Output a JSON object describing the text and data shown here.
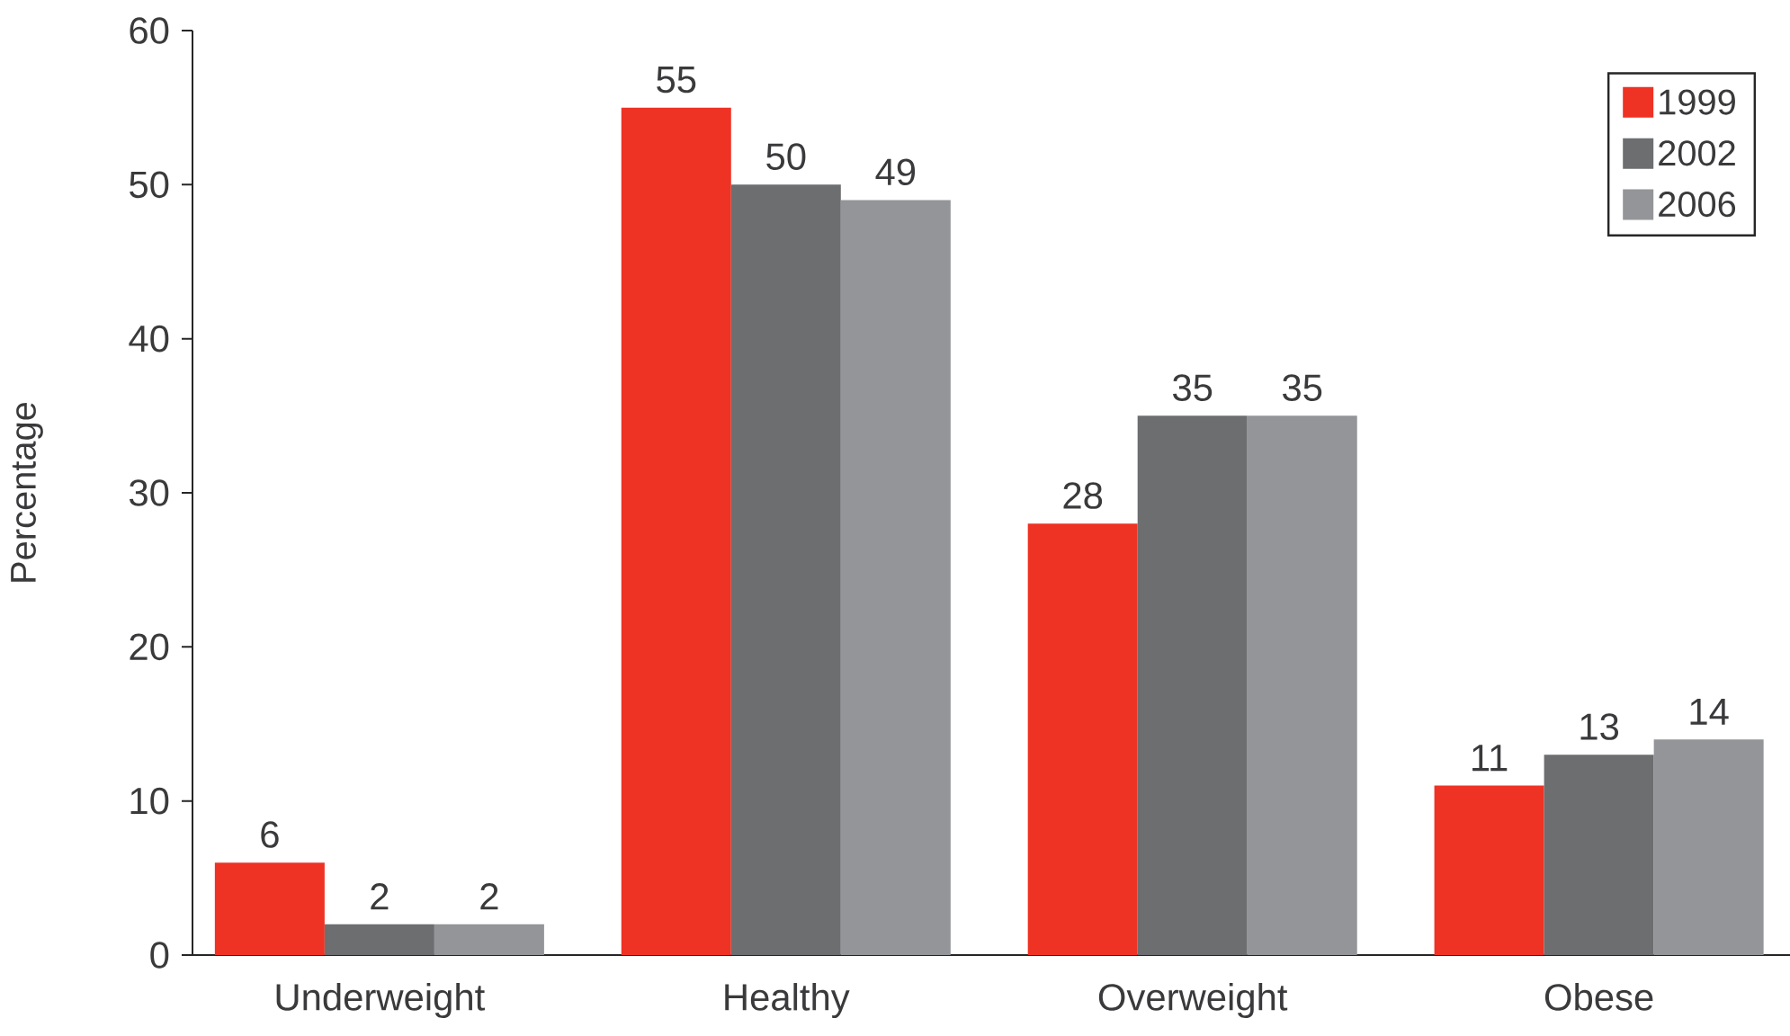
{
  "chart_data": {
    "type": "bar",
    "ylabel": "Percentage",
    "categories": [
      "Underweight",
      "Healthy",
      "Overweight",
      "Obese"
    ],
    "series": [
      {
        "name": "1999",
        "color": "#ee3224",
        "values": [
          6,
          55,
          28,
          11
        ]
      },
      {
        "name": "2002",
        "color": "#6d6e70",
        "values": [
          2,
          50,
          35,
          13
        ]
      },
      {
        "name": "2006",
        "color": "#939598",
        "values": [
          2,
          49,
          35,
          14
        ]
      }
    ],
    "ylim": [
      0,
      60
    ],
    "yticks": [
      0,
      10,
      20,
      30,
      40,
      50,
      60
    ],
    "data_labels": true,
    "legend": "top right"
  }
}
